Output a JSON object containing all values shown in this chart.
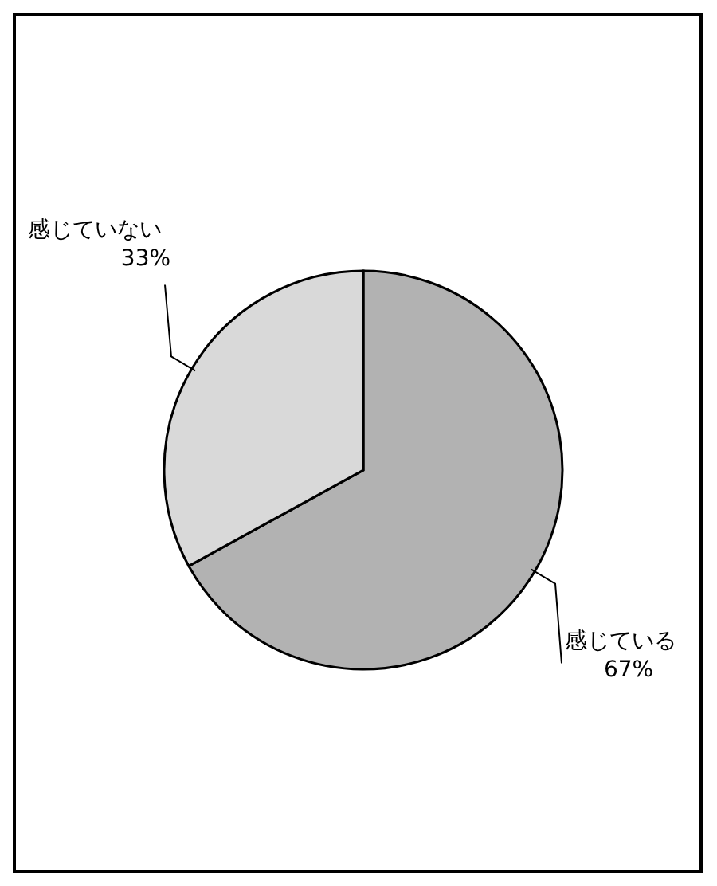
{
  "chart_data": {
    "type": "pie",
    "categories": [
      "感じている",
      "感じていない"
    ],
    "values": [
      67,
      33
    ],
    "colors": [
      "#b2b2b2",
      "#d9d9d9"
    ],
    "value_labels": [
      "67%",
      "33%"
    ]
  }
}
